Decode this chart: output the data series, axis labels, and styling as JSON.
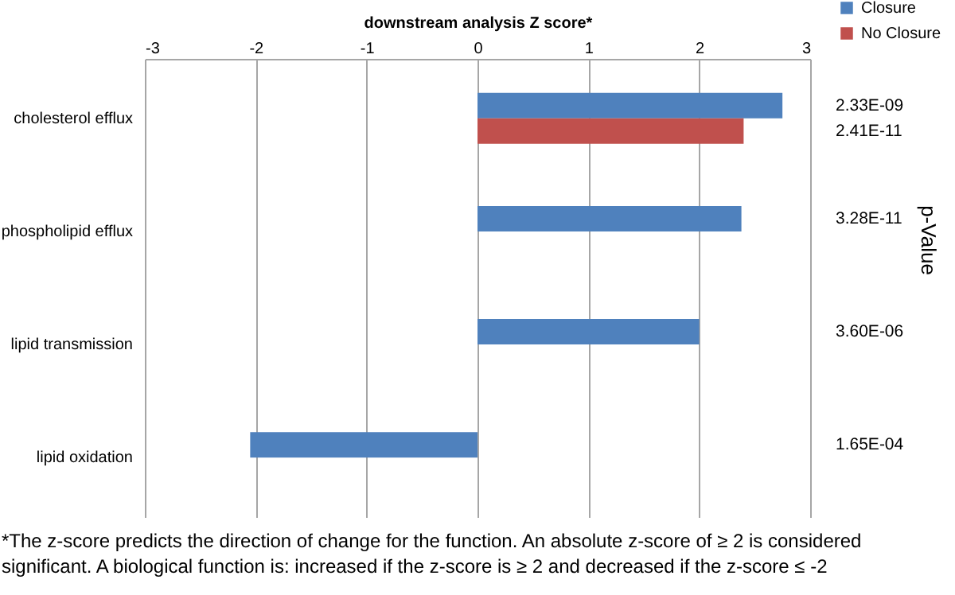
{
  "chart_data": {
    "type": "bar",
    "orientation": "horizontal",
    "xlabel": "downstream analysis Z score*",
    "categories": [
      "cholesterol efflux",
      "phospholipid efflux",
      "lipid transmission",
      "lipid oxidation"
    ],
    "series": [
      {
        "name": "Closure",
        "color": "#4f81bd",
        "values": [
          2.75,
          2.38,
          2.0,
          -2.05
        ]
      },
      {
        "name": "No Closure",
        "color": "#c0504d",
        "values": [
          2.4,
          null,
          null,
          null
        ]
      }
    ],
    "xlim": [
      -3,
      3
    ],
    "xticks": [
      -3,
      -2,
      -1,
      0,
      1,
      2,
      3
    ],
    "grid": "x",
    "legend": "top right",
    "annotations": [
      "2.33E-09",
      "2.41E-11",
      "3.28E-11",
      "3.60E-06",
      "1.65E-04",
      "p-Value",
      "*The z-score predicts the direction of change for the function. An absolute z-score of ≥ 2 is considered significant. A biological function is: increased if the z-score is ≥ 2 and decreased if the z-score ≤ -2"
    ]
  }
}
